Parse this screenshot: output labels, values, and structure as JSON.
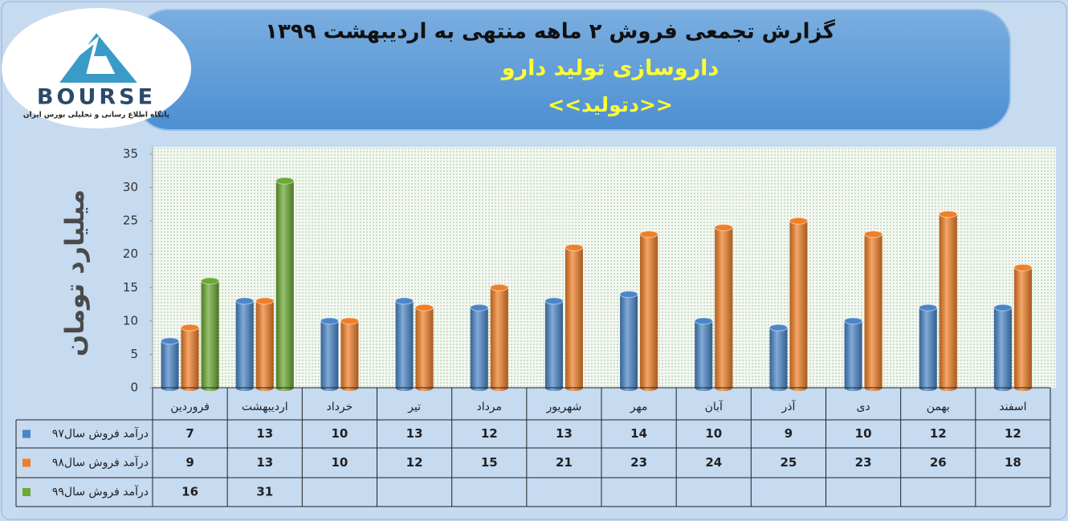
{
  "logo": {
    "name": "BOURSE",
    "tagline": "پایگاه اطلاع رسانی و تحلیلی بورس ایران"
  },
  "chart_data": {
    "type": "bar",
    "title": "گزارش تجمعی فروش  ۲ ماهه منتهی به اردیبهشت ۱۳۹۹",
    "subtitle": "داروسازی تولید دارو",
    "ticker": "<<دتولید>>",
    "ylabel": "میلیارد تومان",
    "categories": [
      "فروردین",
      "اردیبهشت",
      "خرداد",
      "تیر",
      "مرداد",
      "شهریور",
      "مهر",
      "آبان",
      "آذر",
      "دی",
      "بهمن",
      "اسفند"
    ],
    "series": [
      {
        "name": "درآمد فروش سال۹۷",
        "color": "#4a86c8",
        "values": [
          7,
          13,
          10,
          13,
          12,
          13,
          14,
          10,
          9,
          10,
          12,
          12
        ]
      },
      {
        "name": "درآمد فروش سال۹۸",
        "color": "#f07f27",
        "values": [
          9,
          13,
          10,
          12,
          15,
          21,
          23,
          24,
          25,
          23,
          26,
          18
        ]
      },
      {
        "name": "درآمد فروش سال۹۹",
        "color": "#6aa933",
        "values": [
          16,
          31,
          null,
          null,
          null,
          null,
          null,
          null,
          null,
          null,
          null,
          null
        ]
      }
    ],
    "ylim": [
      0,
      35
    ],
    "yticks": [
      0,
      5,
      10,
      15,
      20,
      25,
      30,
      35
    ],
    "grid": false
  }
}
